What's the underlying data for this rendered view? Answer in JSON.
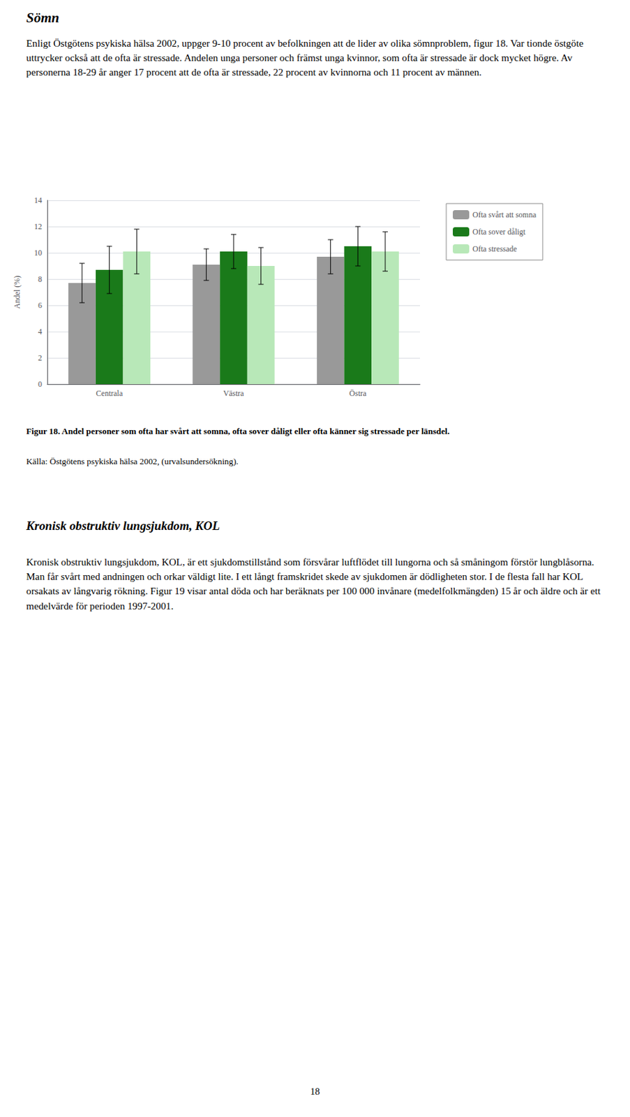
{
  "chart_data": {
    "type": "bar",
    "categories": [
      "Centrala",
      "Västra",
      "Östra"
    ],
    "series": [
      {
        "name": "Ofta svårt att somna",
        "color": "#999999",
        "values": [
          7.7,
          9.1,
          9.7
        ],
        "errors": [
          1.5,
          1.2,
          1.3
        ]
      },
      {
        "name": "Ofta sover dåligt",
        "color": "#1a7a1a",
        "values": [
          8.7,
          10.1,
          10.5
        ],
        "errors": [
          1.8,
          1.3,
          1.5
        ]
      },
      {
        "name": "Ofta stressade",
        "color": "#b8e8b8",
        "values": [
          10.1,
          9.0,
          10.1
        ],
        "errors": [
          1.7,
          1.4,
          1.5
        ]
      }
    ],
    "ylabel": "Andel (%)",
    "ylim": [
      0,
      14
    ],
    "yticks": [
      0,
      2,
      4,
      6,
      8,
      10,
      12,
      14
    ],
    "grid": true,
    "legend": "right",
    "annotations": [
      "Sömn",
      "Enligt Östgötens psykiska hälsa 2002, uppger 9-10 procent av befolkningen att de lider av olika sömnproblem, figur 18. Var tionde östgöte uttrycker också att de ofta är stressade. Andelen unga personer och främst unga kvinnor, som ofta är stressade är dock mycket högre. Av personerna 18-29 år anger 17 procent att de ofta är stressade, 22 procent av kvinnorna och 11 procent av männen.",
      "Figur 18. Andel personer som ofta har svårt att somna, ofta sover dåligt eller ofta känner sig stressade per länsdel.",
      "Källa: Östgötens psykiska hälsa 2002, (urvalsundersökning).",
      "Kronisk obstruktiv lungsjukdom, KOL",
      "Kronisk obstruktiv lungsjukdom, KOL, är ett sjukdomstillstånd som försvårar luftflödet till lungorna och så småningom förstör lungblåsorna. Man får svårt med andningen och orkar väldigt lite. I ett långt framskridet skede av sjukdomen är dödligheten stor. I de flesta fall har KOL orsakats av långvarig rökning. Figur 19 visar antal döda och har beräknats per 100 000 invånare (medelfolkmängden) 15 år och äldre och är ett medelvärde för perioden 1997-2001.",
      "18"
    ]
  }
}
